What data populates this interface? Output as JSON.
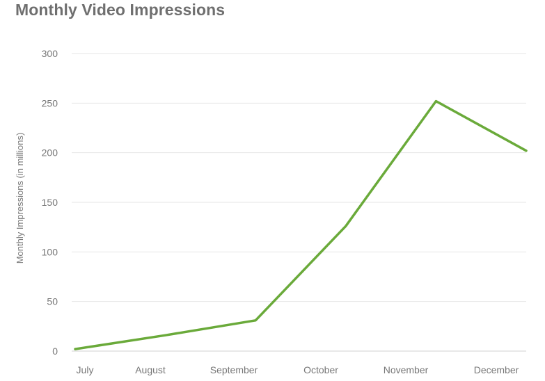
{
  "chart_data": {
    "type": "line",
    "title": "Monthly Video Impressions",
    "xlabel": "",
    "ylabel": "Monthly Impressions (in millions)",
    "categories": [
      "July",
      "August",
      "September",
      "October",
      "November",
      "December"
    ],
    "series": [
      {
        "values": [
          2,
          16,
          31,
          126,
          252,
          202
        ],
        "color": "#6aaa3a"
      }
    ],
    "ylim": [
      0,
      300
    ],
    "yticks": [
      0,
      50,
      100,
      150,
      200,
      250,
      300
    ],
    "grid": true,
    "legend": "none"
  }
}
